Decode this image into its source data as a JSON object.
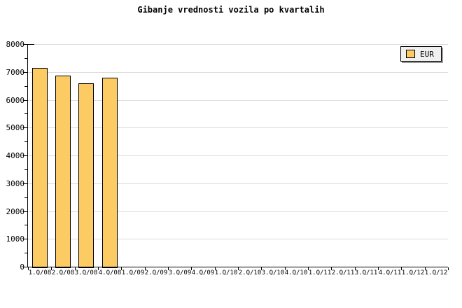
{
  "title": "Gibanje vrednosti vozila po kvartalih",
  "legend": {
    "label": "EUR"
  },
  "colors": {
    "background": "#ffffff",
    "bar_fill": "#fdcb63",
    "bar_border": "#000000",
    "grid": "#dcdcdc",
    "axis": "#000000",
    "legend_bg": "#f0f0f0",
    "legend_shadow": "#999999",
    "text": "#000000"
  },
  "chart_data": {
    "type": "bar",
    "title": "Gibanje vrednosti vozila po kvartalih",
    "xlabel": "",
    "ylabel": "",
    "categories": [
      "1.Q/08",
      "2.Q/08",
      "3.Q/08",
      "4.Q/08",
      "1.Q/09",
      "2.Q/09",
      "3.Q/09",
      "4.Q/09",
      "1.Q/10",
      "2.Q/10",
      "3.Q/10",
      "4.Q/10",
      "1.Q/11",
      "2.Q/11",
      "3.Q/11",
      "4.Q/11",
      "1.Q/12",
      "1.Q/12"
    ],
    "series": [
      {
        "name": "EUR",
        "values": [
          7140,
          6860,
          6590,
          6800,
          null,
          null,
          null,
          null,
          null,
          null,
          null,
          null,
          null,
          null,
          null,
          null,
          null,
          null
        ]
      }
    ],
    "ylim": [
      0,
      8000
    ],
    "ytick_interval": 1000,
    "ytick_minor_interval": 500,
    "ytick_labels": [
      "0",
      "1000",
      "2000",
      "3000",
      "4000",
      "5000",
      "6000",
      "7000",
      "8000"
    ],
    "grid": "horizontal-major",
    "legend_position": "top-right"
  }
}
